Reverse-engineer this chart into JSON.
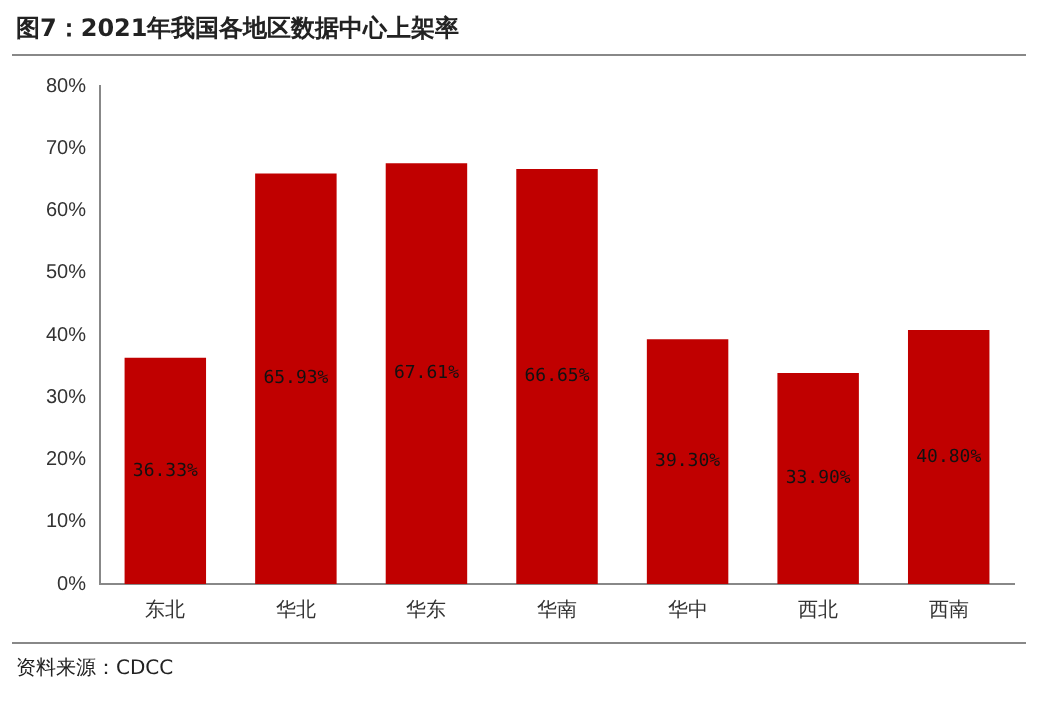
{
  "chart_data": {
    "type": "bar",
    "title": "图7：2021年我国各地区数据中心上架率",
    "categories": [
      "东北",
      "华北",
      "华东",
      "华南",
      "华中",
      "西北",
      "西南"
    ],
    "values": [
      36.33,
      65.93,
      67.61,
      66.65,
      39.3,
      33.9,
      40.8
    ],
    "value_labels": [
      "36.33%",
      "65.93%",
      "67.61%",
      "66.65%",
      "39.30%",
      "33.90%",
      "40.80%"
    ],
    "color": "#c00000",
    "ylim": [
      0,
      80
    ],
    "yticks": [
      {
        "value": 0,
        "label": "0%"
      },
      {
        "value": 10,
        "label": "10%"
      },
      {
        "value": 20,
        "label": "20%"
      },
      {
        "value": 30,
        "label": "30%"
      },
      {
        "value": 40,
        "label": "40%"
      },
      {
        "value": 50,
        "label": "50%"
      },
      {
        "value": 60,
        "label": "60%"
      },
      {
        "value": 70,
        "label": "70%"
      },
      {
        "value": 80,
        "label": "80%"
      }
    ],
    "grid": false,
    "legend": false,
    "annotations": [
      "资料来源：CDCC"
    ]
  }
}
